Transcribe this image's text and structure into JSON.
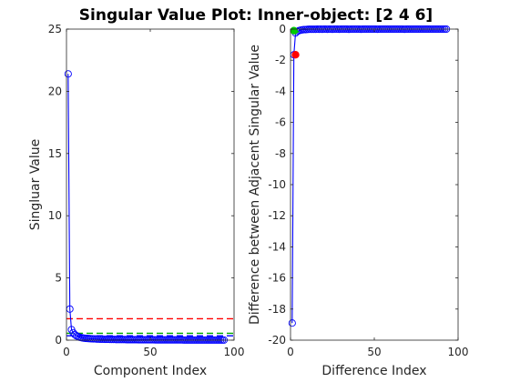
{
  "chart_data": [
    {
      "type": "line",
      "panel": "left",
      "title": "Singular Value Plot: Inner-object: [2 4 6]",
      "xlabel": "Component Index",
      "ylabel": "Singluar Value",
      "xlim": [
        0,
        100
      ],
      "ylim": [
        0,
        25
      ],
      "xticks": [
        "0",
        "50",
        "100"
      ],
      "yticks": [
        "0",
        "5",
        "10",
        "15",
        "20",
        "25"
      ],
      "grid": false,
      "series": [
        {
          "marker": "circle",
          "color": "#0000ff",
          "x": [
            1,
            2,
            3,
            4,
            5,
            6,
            7,
            8,
            9,
            10,
            11,
            12,
            13,
            14,
            15,
            16,
            17,
            18,
            19,
            20,
            21,
            22,
            23,
            24,
            25,
            26,
            27,
            28,
            29,
            30,
            31,
            32,
            33,
            34,
            35,
            36,
            37,
            38,
            39,
            40,
            41,
            42,
            43,
            44,
            45,
            46,
            47,
            48,
            49,
            50,
            51,
            52,
            53,
            54,
            55,
            56,
            57,
            58,
            59,
            60,
            61,
            62,
            63,
            64,
            65,
            66,
            67,
            68,
            69,
            70,
            71,
            72,
            73,
            74,
            75,
            76,
            77,
            78,
            79,
            80,
            81,
            82,
            83,
            84,
            85,
            86,
            87,
            88,
            89,
            90,
            91,
            92,
            93,
            94
          ],
          "y": [
            21.4,
            2.5,
            0.85,
            0.6,
            0.45,
            0.35,
            0.28,
            0.23,
            0.2,
            0.17,
            0.15,
            0.14,
            0.13,
            0.12,
            0.11,
            0.1,
            0.1,
            0.09,
            0.09,
            0.08,
            0.08,
            0.08,
            0.07,
            0.07,
            0.07,
            0.06,
            0.06,
            0.06,
            0.06,
            0.05,
            0.05,
            0.05,
            0.05,
            0.05,
            0.05,
            0.04,
            0.04,
            0.04,
            0.04,
            0.04,
            0.04,
            0.04,
            0.03,
            0.03,
            0.03,
            0.03,
            0.03,
            0.03,
            0.03,
            0.03,
            0.03,
            0.03,
            0.02,
            0.02,
            0.02,
            0.02,
            0.02,
            0.02,
            0.02,
            0.02,
            0.02,
            0.02,
            0.02,
            0.02,
            0.02,
            0.02,
            0.02,
            0.02,
            0.02,
            0.01,
            0.01,
            0.01,
            0.01,
            0.01,
            0.01,
            0.01,
            0.01,
            0.01,
            0.01,
            0.01,
            0.01,
            0.01,
            0.01,
            0.01,
            0.01,
            0.01,
            0.01,
            0.01,
            0.01,
            0.01,
            0.01,
            0.01,
            0.01,
            0.01
          ]
        }
      ],
      "hlines": [
        {
          "y": 1.72,
          "color": "#ff0000",
          "style": "dashed"
        },
        {
          "y": 0.55,
          "color": "#00aa00",
          "style": "dashed"
        },
        {
          "y": 0.35,
          "color": "#0000ff",
          "style": "dashed"
        }
      ]
    },
    {
      "type": "line",
      "panel": "right",
      "title": "",
      "xlabel": "Difference Index",
      "ylabel": "Difference between Adjacent Singular Value",
      "xlim": [
        0,
        100
      ],
      "ylim": [
        -20,
        0
      ],
      "xticks": [
        "0",
        "50",
        "100"
      ],
      "yticks": [
        "-20",
        "-18",
        "-16",
        "-14",
        "-12",
        "-10",
        "-8",
        "-6",
        "-4",
        "-2",
        "0"
      ],
      "grid": false,
      "series": [
        {
          "marker": "circle",
          "color": "#0000ff",
          "x": [
            1,
            2,
            3,
            4,
            5,
            6,
            7,
            8,
            9,
            10,
            11,
            12,
            13,
            14,
            15,
            16,
            17,
            18,
            19,
            20,
            21,
            22,
            23,
            24,
            25,
            26,
            27,
            28,
            29,
            30,
            31,
            32,
            33,
            34,
            35,
            36,
            37,
            38,
            39,
            40,
            41,
            42,
            43,
            44,
            45,
            46,
            47,
            48,
            49,
            50,
            51,
            52,
            53,
            54,
            55,
            56,
            57,
            58,
            59,
            60,
            61,
            62,
            63,
            64,
            65,
            66,
            67,
            68,
            69,
            70,
            71,
            72,
            73,
            74,
            75,
            76,
            77,
            78,
            79,
            80,
            81,
            82,
            83,
            84,
            85,
            86,
            87,
            88,
            89,
            90,
            91,
            92,
            93
          ],
          "y": [
            -18.9,
            -1.65,
            -0.25,
            -0.15,
            -0.1,
            -0.07,
            -0.05,
            -0.03,
            -0.03,
            -0.02,
            -0.01,
            -0.01,
            -0.01,
            -0.01,
            -0.01,
            0,
            -0.01,
            0,
            -0.01,
            0,
            0,
            -0.01,
            0,
            0,
            -0.01,
            0,
            0,
            0,
            -0.01,
            0,
            0,
            0,
            0,
            0,
            -0.01,
            0,
            0,
            0,
            0,
            0,
            0,
            -0.01,
            0,
            0,
            0,
            0,
            0,
            0,
            0,
            0,
            0,
            -0.01,
            0,
            0,
            0,
            0,
            0,
            0,
            0,
            0,
            0,
            0,
            0,
            0,
            0,
            0,
            0,
            -0.01,
            0,
            0,
            0,
            0,
            0,
            0,
            0,
            0,
            0,
            0,
            0,
            0,
            0,
            0,
            0,
            0,
            0,
            0,
            0,
            0,
            0,
            0,
            0,
            0,
            0
          ]
        }
      ],
      "green_line": {
        "color": "#00cc00",
        "x": [
          1,
          2,
          3,
          4,
          5
        ],
        "y": [
          -0.1,
          -0.05,
          -0.3,
          -0.2,
          -0.15
        ]
      },
      "markers": [
        {
          "x": 2,
          "y": -0.1,
          "color": "#00cc00"
        },
        {
          "x": 3,
          "y": -1.65,
          "color": "#ff0000"
        }
      ]
    }
  ]
}
